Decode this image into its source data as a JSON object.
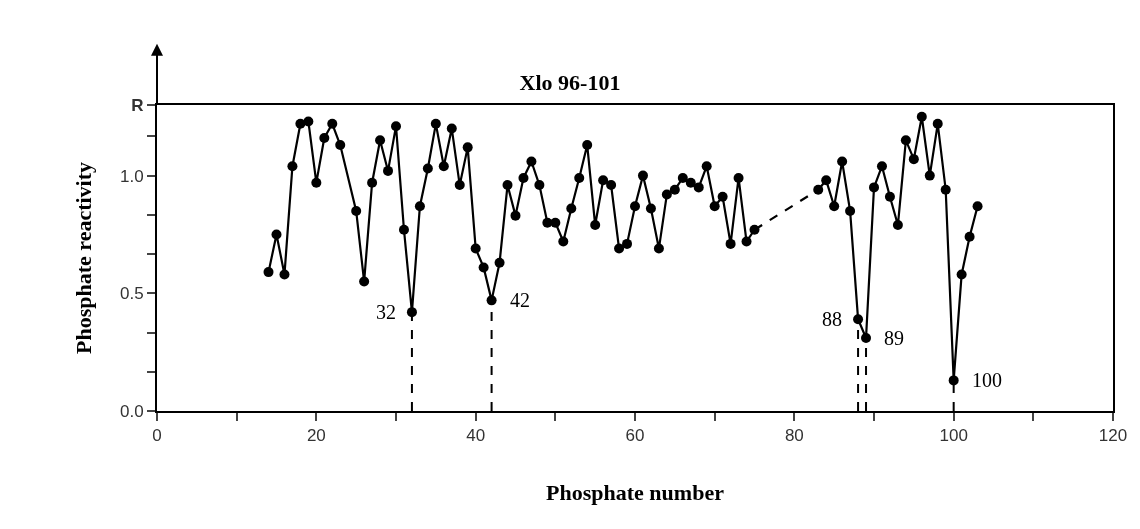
{
  "chart_data": {
    "type": "line",
    "title": "Xlo 96-101",
    "xlabel": "Phosphate number",
    "ylabel": "Phosphate reactivity",
    "series": [
      {
        "color": "#000000",
        "x": [
          14,
          15,
          16,
          17,
          18,
          19,
          20,
          21,
          22,
          23,
          25,
          26,
          27,
          28,
          29,
          30,
          31,
          32,
          33,
          34,
          35,
          36,
          37,
          38,
          39,
          40,
          41,
          42,
          43,
          44,
          45,
          46,
          47,
          48,
          49,
          50,
          51,
          52,
          53,
          54,
          55,
          56,
          57,
          58,
          59,
          60,
          61,
          62,
          63,
          64,
          65,
          66,
          67,
          68,
          69,
          70,
          71,
          72,
          73,
          74,
          75
        ],
        "values": [
          0.59,
          0.75,
          0.58,
          1.04,
          1.22,
          1.23,
          0.97,
          1.16,
          1.22,
          1.13,
          0.85,
          0.55,
          0.97,
          1.15,
          1.02,
          1.21,
          0.77,
          0.42,
          0.87,
          1.03,
          1.22,
          1.04,
          1.2,
          0.96,
          1.12,
          0.69,
          0.61,
          0.47,
          0.63,
          0.96,
          0.83,
          0.99,
          1.06,
          0.96,
          0.8,
          0.8,
          0.72,
          0.86,
          0.99,
          1.13,
          0.79,
          0.98,
          0.96,
          0.69,
          0.71,
          0.87,
          1.0,
          0.86,
          0.69,
          0.92,
          0.94,
          0.99,
          0.97,
          0.95,
          1.04,
          0.87,
          0.91,
          0.71,
          0.99,
          0.72,
          0.77
        ]
      },
      {
        "color": "#000000",
        "x": [
          83,
          84,
          85,
          86,
          87,
          88,
          89,
          90,
          91,
          92,
          93,
          94,
          95,
          96,
          97,
          98,
          99,
          100,
          101,
          102,
          103
        ],
        "values": [
          0.94,
          0.98,
          0.87,
          1.06,
          0.85,
          0.39,
          0.31,
          0.95,
          1.04,
          0.91,
          0.79,
          1.15,
          1.07,
          1.25,
          1.0,
          1.22,
          0.94,
          0.13,
          0.58,
          0.74,
          0.87
        ]
      },
      {
        "color": "#000000",
        "x": [
          75,
          83
        ],
        "values": [
          0.77,
          0.94
        ],
        "line_style": "dashed",
        "marker": "none"
      }
    ],
    "marker": "circle",
    "line_style": "solid",
    "grid": false,
    "xlim": [
      0,
      120
    ],
    "xticks": [
      0,
      {
        "value": 10,
        "label": null
      },
      20,
      {
        "value": 30,
        "label": null
      },
      40,
      {
        "value": 50,
        "label": null
      },
      60,
      {
        "value": 70,
        "label": null
      },
      80,
      {
        "value": 90,
        "label": null
      },
      100,
      {
        "value": 110,
        "label": null
      },
      120
    ],
    "ylim": [
      0,
      1.3
    ],
    "yticks": [
      {
        "value": 0,
        "label": "0.0"
      },
      {
        "value": 0.1667,
        "label": null
      },
      {
        "value": 0.3333,
        "label": null
      },
      0.5,
      {
        "value": 0.6667,
        "label": null
      },
      {
        "value": 0.8333,
        "label": null
      },
      {
        "value": 1,
        "label": "1.0"
      },
      {
        "value": 1.1667,
        "label": null
      },
      {
        "value": 1.3,
        "label": "R"
      }
    ],
    "ref_lines": [
      {
        "axis": "x",
        "value": 32,
        "label": "32",
        "line_style": "dashed",
        "color": "#000000"
      },
      {
        "axis": "x",
        "value": 42,
        "label": "42",
        "line_style": "dashed",
        "color": "#000000"
      },
      {
        "axis": "x",
        "value": 88,
        "label": "88",
        "line_style": "dashed",
        "color": "#000000"
      },
      {
        "axis": "x",
        "value": 89,
        "label": "89",
        "line_style": "dashed",
        "color": "#000000"
      },
      {
        "axis": "x",
        "value": 100,
        "label": "100",
        "line_style": "dashed",
        "color": "#000000"
      }
    ]
  }
}
